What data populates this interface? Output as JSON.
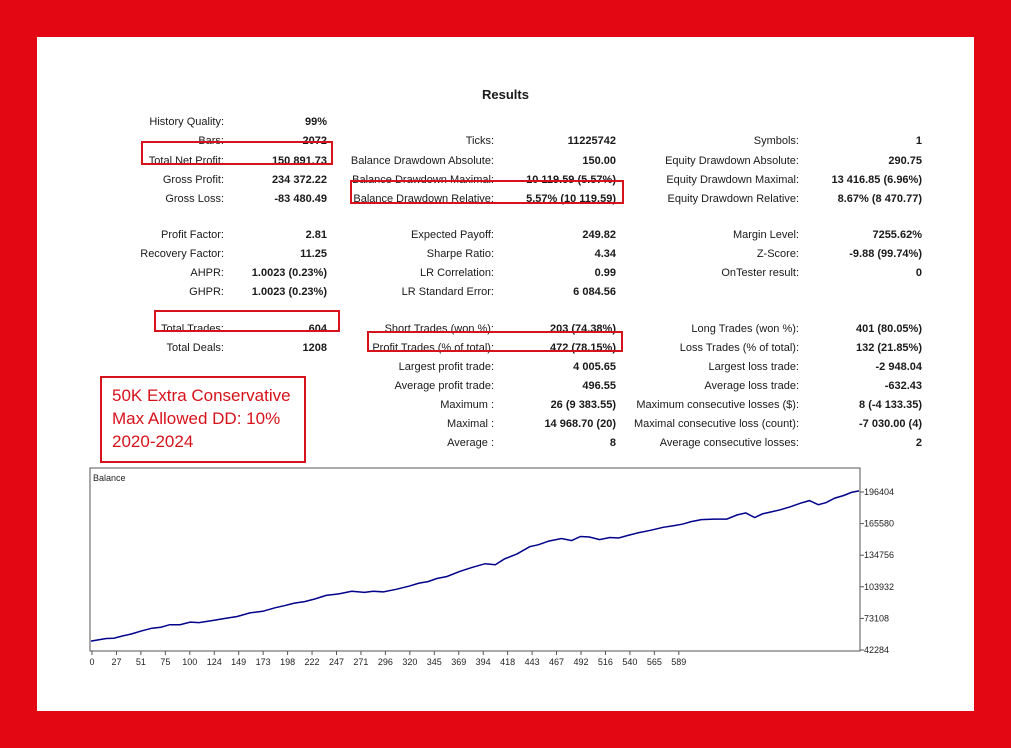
{
  "report": {
    "title": "Results",
    "col1": [
      {
        "label": "History Quality:",
        "value": "99%"
      },
      {
        "label": "Bars:",
        "value": "2072"
      },
      {
        "label": "Total Net Profit:",
        "value": "150 891.73"
      },
      {
        "label": "Gross Profit:",
        "value": "234 372.22"
      },
      {
        "label": "Gross Loss:",
        "value": "-83 480.49"
      },
      {
        "label": "Profit Factor:",
        "value": "2.81"
      },
      {
        "label": "Recovery Factor:",
        "value": "11.25"
      },
      {
        "label": "AHPR:",
        "value": "1.0023 (0.23%)"
      },
      {
        "label": "GHPR:",
        "value": "1.0023 (0.23%)"
      },
      {
        "label": "Total Trades:",
        "value": "604"
      },
      {
        "label": "Total Deals:",
        "value": "1208"
      }
    ],
    "col2": [
      {
        "label": "Ticks:",
        "value": "11225742"
      },
      {
        "label": "Balance Drawdown Absolute:",
        "value": "150.00"
      },
      {
        "label": "Balance Drawdown Maximal:",
        "value": "10 119.59 (5.57%)"
      },
      {
        "label": "Balance Drawdown Relative:",
        "value": "5.57% (10 119.59)"
      },
      {
        "label": "Expected Payoff:",
        "value": "249.82"
      },
      {
        "label": "Sharpe Ratio:",
        "value": "4.34"
      },
      {
        "label": "LR Correlation:",
        "value": "0.99"
      },
      {
        "label": "LR Standard Error:",
        "value": "6 084.56"
      },
      {
        "label": "Short Trades (won %):",
        "value": "203 (74.38%)"
      },
      {
        "label": "Profit Trades (% of total):",
        "value": "472 (78.15%)"
      },
      {
        "label": "Largest profit trade:",
        "value": "4 005.65"
      },
      {
        "label": "Average profit trade:",
        "value": "496.55"
      },
      {
        "label": "Maximum :",
        "value": "26 (9 383.55)"
      },
      {
        "label": "Maximal :",
        "value": "14 968.70 (20)"
      },
      {
        "label": "Average :",
        "value": "8"
      }
    ],
    "col3": [
      {
        "label": "Symbols:",
        "value": "1"
      },
      {
        "label": "Equity Drawdown Absolute:",
        "value": "290.75"
      },
      {
        "label": "Equity Drawdown Maximal:",
        "value": "13 416.85 (6.96%)"
      },
      {
        "label": "Equity Drawdown Relative:",
        "value": "8.67% (8 470.77)"
      },
      {
        "label": "Margin Level:",
        "value": "7255.62%"
      },
      {
        "label": "Z-Score:",
        "value": "-9.88 (99.74%)"
      },
      {
        "label": "OnTester result:",
        "value": "0"
      },
      {
        "label": "Long Trades (won %):",
        "value": "401 (80.05%)"
      },
      {
        "label": "Loss Trades (% of total):",
        "value": "132 (21.85%)"
      },
      {
        "label": "Largest loss trade:",
        "value": "-2 948.04"
      },
      {
        "label": "Average loss trade:",
        "value": "-632.43"
      },
      {
        "label": "Maximum consecutive losses ($):",
        "value": "8 (-4 133.35)"
      },
      {
        "label": "Maximal consecutive loss (count):",
        "value": "-7 030.00 (4)"
      },
      {
        "label": "Average consecutive losses:",
        "value": "2"
      }
    ]
  },
  "note": {
    "lines": [
      "50K Extra Conservative",
      "Max Allowed DD: 10%",
      "2020-2024"
    ],
    "color": "#d6121b"
  },
  "colors": {
    "frame": "#e30613",
    "line": "#00008b",
    "highlight": "#d6121b"
  },
  "chart_data": {
    "type": "line",
    "title": "Balance",
    "x_ticks": [
      "0",
      "27",
      "51",
      "75",
      "100",
      "124",
      "149",
      "173",
      "198",
      "222",
      "247",
      "271",
      "296",
      "320",
      "345",
      "369",
      "394",
      "418",
      "443",
      "467",
      "492",
      "516",
      "540",
      "565",
      "589"
    ],
    "y_ticks": [
      "196404",
      "165580",
      "134756",
      "103932",
      "73108",
      "42284"
    ],
    "ylim": [
      42284,
      196404
    ],
    "xlim": [
      0,
      604
    ],
    "series": [
      {
        "x": [
          0,
          5,
          12,
          18,
          25,
          32,
          40,
          48,
          55,
          62,
          70,
          78,
          85,
          95,
          105,
          115,
          125,
          135,
          145,
          152,
          160,
          168,
          176,
          185,
          195,
          205,
          215,
          222,
          230,
          240,
          250,
          258,
          265,
          272,
          280,
          290,
          300,
          310,
          318,
          325,
          335,
          345,
          352,
          360,
          370,
          378,
          385,
          392,
          400,
          408,
          415,
          422,
          430,
          440,
          450,
          458,
          465,
          472,
          480,
          490,
          500,
          508,
          515,
          522,
          528,
          535,
          542,
          550,
          558,
          565,
          572,
          578,
          585,
          592,
          598,
          604
        ],
        "y": [
          51000,
          52000,
          53500,
          53800,
          56000,
          58000,
          61000,
          63500,
          64500,
          67000,
          67000,
          69500,
          69000,
          71000,
          73000,
          75000,
          78500,
          80000,
          83500,
          85500,
          88000,
          89500,
          92000,
          95500,
          97000,
          99500,
          98500,
          99500,
          99000,
          101500,
          104500,
          107500,
          109000,
          112000,
          114000,
          119000,
          123000,
          126500,
          125500,
          131000,
          136000,
          143000,
          145000,
          148500,
          151000,
          149000,
          153000,
          152500,
          150000,
          152000,
          151500,
          154000,
          156500,
          159000,
          162000,
          163500,
          165000,
          167500,
          169500,
          170000,
          170000,
          174000,
          176000,
          171500,
          175000,
          177000,
          179000,
          182000,
          185500,
          188000,
          184000,
          186000,
          190500,
          193000,
          196000,
          197500
        ]
      }
    ]
  }
}
